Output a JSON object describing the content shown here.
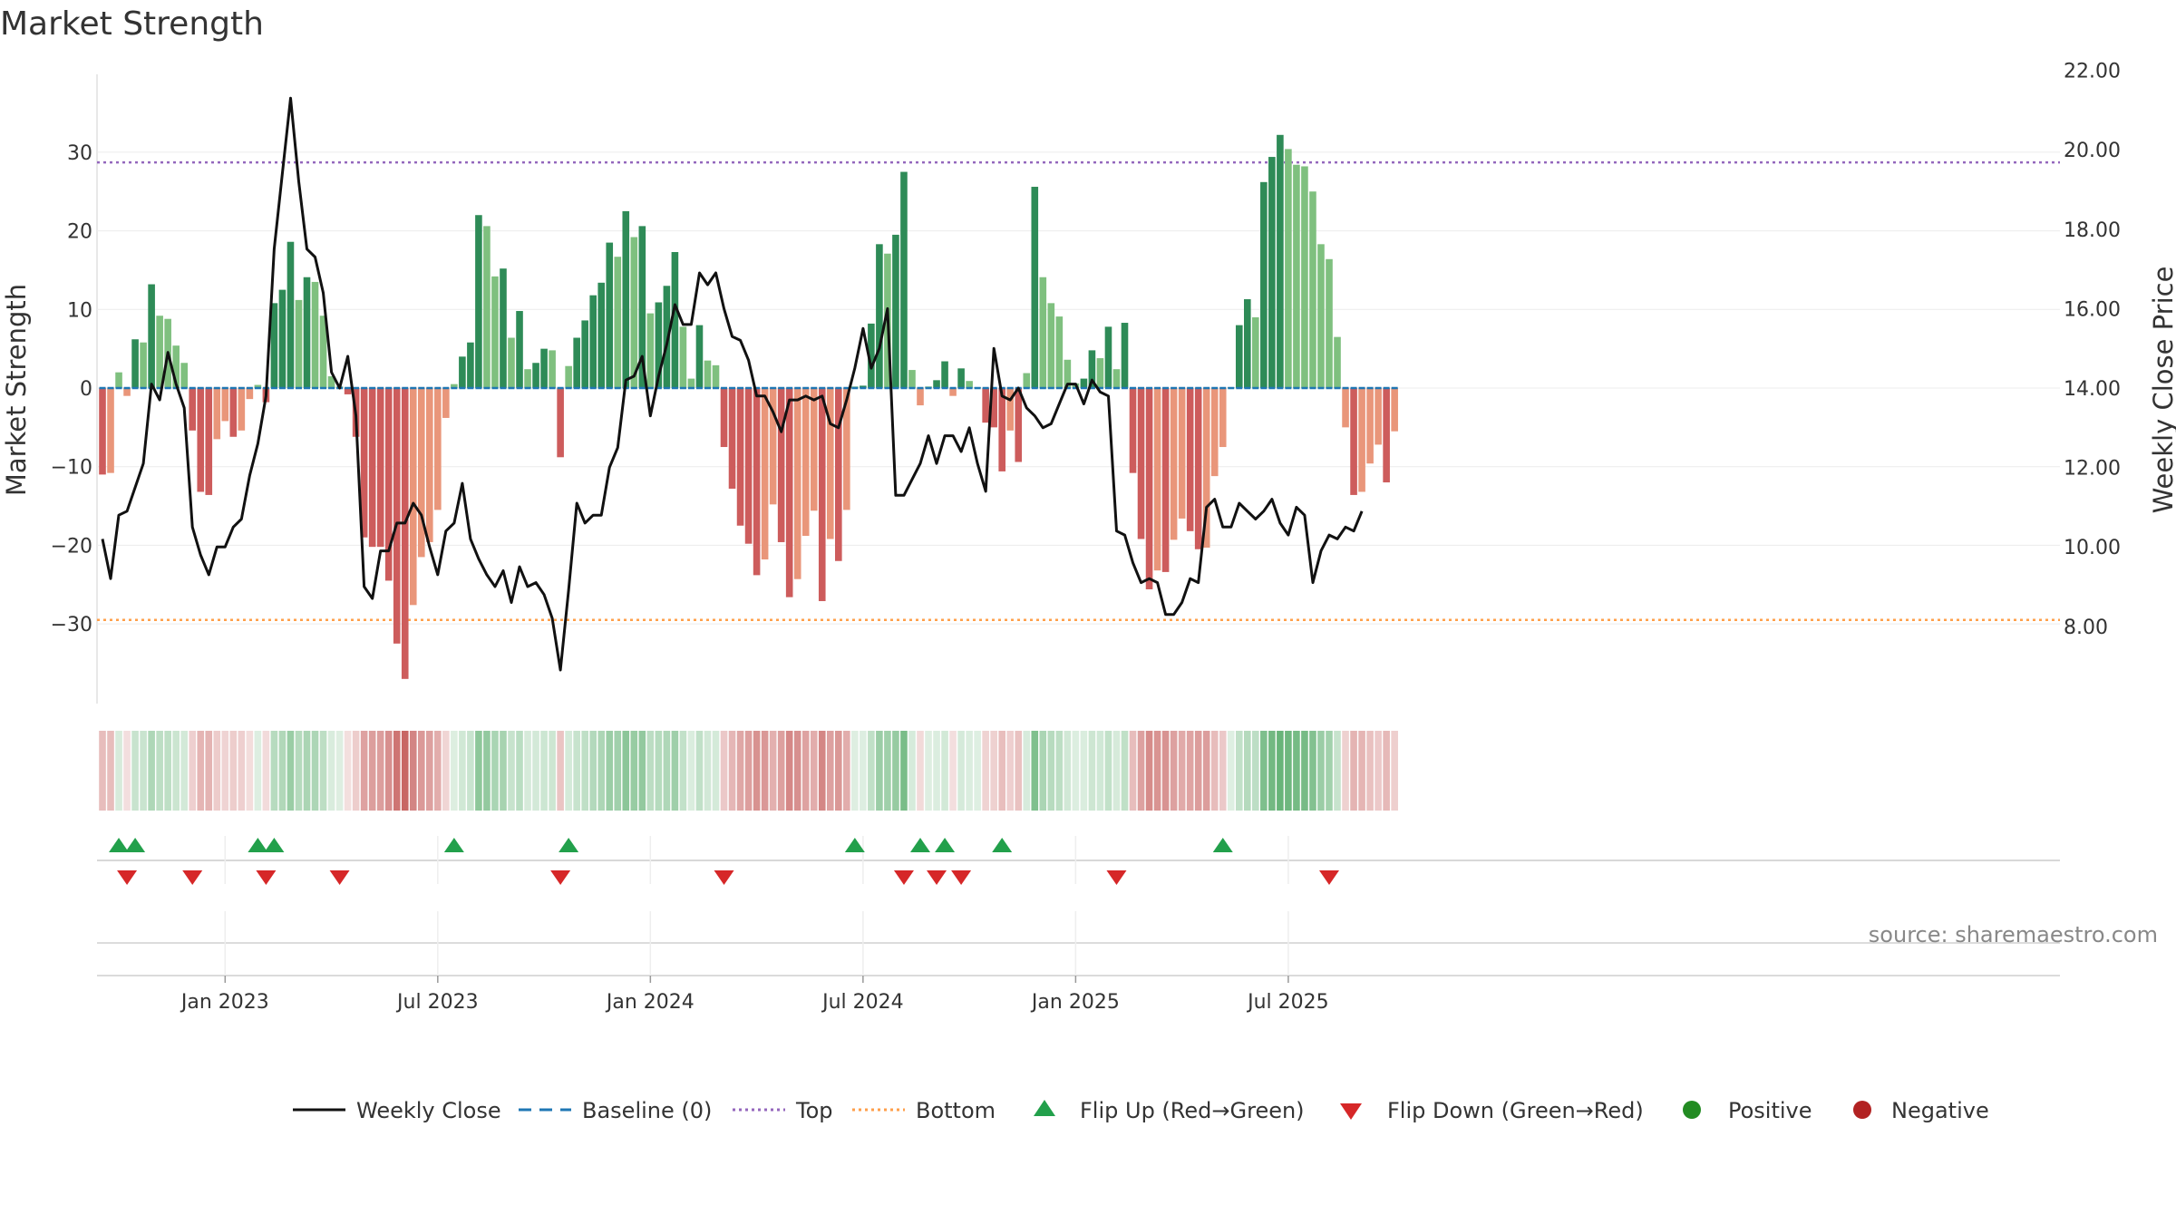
{
  "chart_data": {
    "type": "bar",
    "title": "Market Strength",
    "ylabel": "Market Strength",
    "y2label": "Weekly Close Price",
    "ylim": [
      -40,
      40
    ],
    "y2lim": [
      6.4,
      22.6
    ],
    "yticks": [
      30,
      20,
      10,
      0,
      -10,
      -20,
      -30
    ],
    "ytick_labels": [
      "30",
      "20",
      "10",
      "0",
      "−10",
      "−20",
      "−30"
    ],
    "y2ticks": [
      22,
      20,
      18,
      16,
      14,
      12,
      10,
      8
    ],
    "y2tick_labels": [
      "22.00",
      "20.00",
      "18.00",
      "16.00",
      "14.00",
      "12.00",
      "10.00",
      "8.00"
    ],
    "xticks": [
      {
        "label": "Jan 2023",
        "week": 15
      },
      {
        "label": "Jul 2023",
        "week": 41
      },
      {
        "label": "Jan 2024",
        "week": 67
      },
      {
        "label": "Jul 2024",
        "week": 93
      },
      {
        "label": "Jan 2025",
        "week": 119
      },
      {
        "label": "Jul 2025",
        "week": 145
      }
    ],
    "top_level": 28.7,
    "bottom_level": -29.5,
    "strength": [
      -11,
      -10.8,
      2,
      -1,
      6.2,
      5.8,
      13.2,
      9.2,
      8.8,
      5.4,
      3.2,
      -5.4,
      -13.2,
      -13.6,
      -6.5,
      -4.2,
      -6.2,
      -5.4,
      -1.4,
      0.4,
      -1.8,
      10.8,
      12.5,
      18.6,
      11.2,
      14.1,
      13.5,
      9.2,
      1.5,
      0.2,
      -0.8,
      -6.2,
      -19,
      -20.2,
      -20.2,
      -24.5,
      -32.5,
      -37,
      -27.6,
      -21.5,
      -19.6,
      -15.5,
      -3.8,
      0.5,
      4,
      5.8,
      22,
      20.6,
      14.2,
      15.2,
      6.4,
      9.8,
      2.4,
      3.2,
      5,
      4.8,
      -8.8,
      2.8,
      6.4,
      8.6,
      11.8,
      13.4,
      18.5,
      16.7,
      22.5,
      19.2,
      20.6,
      9.5,
      10.9,
      13,
      17.3,
      7.8,
      1.2,
      8,
      3.5,
      2.9,
      -7.5,
      -12.8,
      -17.5,
      -19.8,
      -23.8,
      -21.8,
      -14.8,
      -19.6,
      -26.6,
      -24.3,
      -18.8,
      -15.6,
      -27.1,
      -19.2,
      -22,
      -15.5,
      0.2,
      0.3,
      8.2,
      18.3,
      17.1,
      19.5,
      27.5,
      2.3,
      -2.2,
      0.2,
      1,
      3.4,
      -1,
      2.5,
      0.9,
      0.1,
      -4.4,
      -5,
      -10.6,
      -5.4,
      -9.4,
      1.9,
      25.6,
      14.1,
      10.8,
      9.1,
      3.6,
      0.6,
      1.2,
      4.8,
      3.8,
      7.8,
      2.4,
      8.3,
      -10.8,
      -19.2,
      -25.6,
      -23.2,
      -23.4,
      -19.3,
      -16.6,
      -18.2,
      -20.5,
      -20.3,
      -11.2,
      -7.5,
      0.1,
      8,
      11.3,
      9,
      26.2,
      29.4,
      32.2,
      30.4,
      28.4,
      28.2,
      25,
      18.3,
      16.4,
      6.5,
      -5,
      -13.6,
      -13.2,
      -9.6,
      -7.2,
      -12,
      -5.5
    ],
    "close": [
      10.2,
      9.2,
      10.8,
      10.9,
      11.5,
      12.1,
      14.1,
      13.7,
      14.9,
      14.1,
      13.5,
      10.5,
      9.8,
      9.3,
      10,
      10,
      10.5,
      10.7,
      11.8,
      12.6,
      13.8,
      17.5,
      19.4,
      21.3,
      19.2,
      17.5,
      17.3,
      16.4,
      14.4,
      14,
      14.8,
      13.3,
      9,
      8.7,
      9.9,
      9.9,
      10.6,
      10.6,
      11.1,
      10.8,
      10,
      9.3,
      10.4,
      10.6,
      11.6,
      10.2,
      9.7,
      9.3,
      9,
      9.4,
      8.6,
      9.5,
      9,
      9.1,
      8.8,
      8.2,
      6.9,
      8.9,
      11.1,
      10.6,
      10.8,
      10.8,
      12,
      12.5,
      14.2,
      14.3,
      14.8,
      13.3,
      14.3,
      15.1,
      16.1,
      15.6,
      15.6,
      16.9,
      16.6,
      16.9,
      16,
      15.3,
      15.2,
      14.7,
      13.8,
      13.8,
      13.4,
      12.9,
      13.7,
      13.7,
      13.8,
      13.7,
      13.8,
      13.1,
      13,
      13.7,
      14.5,
      15.5,
      14.5,
      15,
      16,
      11.3,
      11.3,
      11.7,
      12.1,
      12.8,
      12.1,
      12.8,
      12.8,
      12.4,
      13,
      12.1,
      11.4,
      15,
      13.8,
      13.7,
      14,
      13.5,
      13.3,
      13,
      13.1,
      13.6,
      14.1,
      14.1,
      13.6,
      14.2,
      13.9,
      13.8,
      10.4,
      10.3,
      9.6,
      9.1,
      9.2,
      9.1,
      8.3,
      8.3,
      8.6,
      9.2,
      9.1,
      11,
      11.2,
      10.5,
      10.5,
      11.1,
      10.9,
      10.7,
      10.9,
      11.2,
      10.6,
      10.3,
      11,
      10.8,
      9.1,
      9.9,
      10.3,
      10.2,
      10.5,
      10.4,
      10.9
    ],
    "flip_up_weeks": [
      2,
      4,
      19,
      21,
      43,
      57,
      92,
      100,
      103,
      110,
      137
    ],
    "flip_down_weeks": [
      3,
      11,
      20,
      29,
      56,
      76,
      98,
      102,
      105,
      124,
      150
    ],
    "colors": {
      "strong_green": "#2e8b57",
      "light_green": "#7fc07f",
      "strong_red": "#cd5c5c",
      "light_red": "#e9967a",
      "close_line": "#111111",
      "baseline": "#1f77b4",
      "top": "#9467bd",
      "bottom": "#ff9f4a",
      "flip_up": "#22a04b",
      "flip_down": "#d62728",
      "positive": "#228b22",
      "negative": "#b22222"
    },
    "legend": [
      {
        "label": "Weekly Close",
        "marker": "line"
      },
      {
        "label": "Baseline (0)",
        "marker": "dash"
      },
      {
        "label": "Top",
        "marker": "dot-purple"
      },
      {
        "label": "Bottom",
        "marker": "dot-orange"
      },
      {
        "label": "Flip Up (Red→Green)",
        "marker": "triangle-up"
      },
      {
        "label": "Flip Down (Green→Red)",
        "marker": "triangle-down"
      },
      {
        "label": "Positive",
        "marker": "circle-green"
      },
      {
        "label": "Negative",
        "marker": "circle-red"
      }
    ],
    "source": "source: sharemaestro.com"
  }
}
